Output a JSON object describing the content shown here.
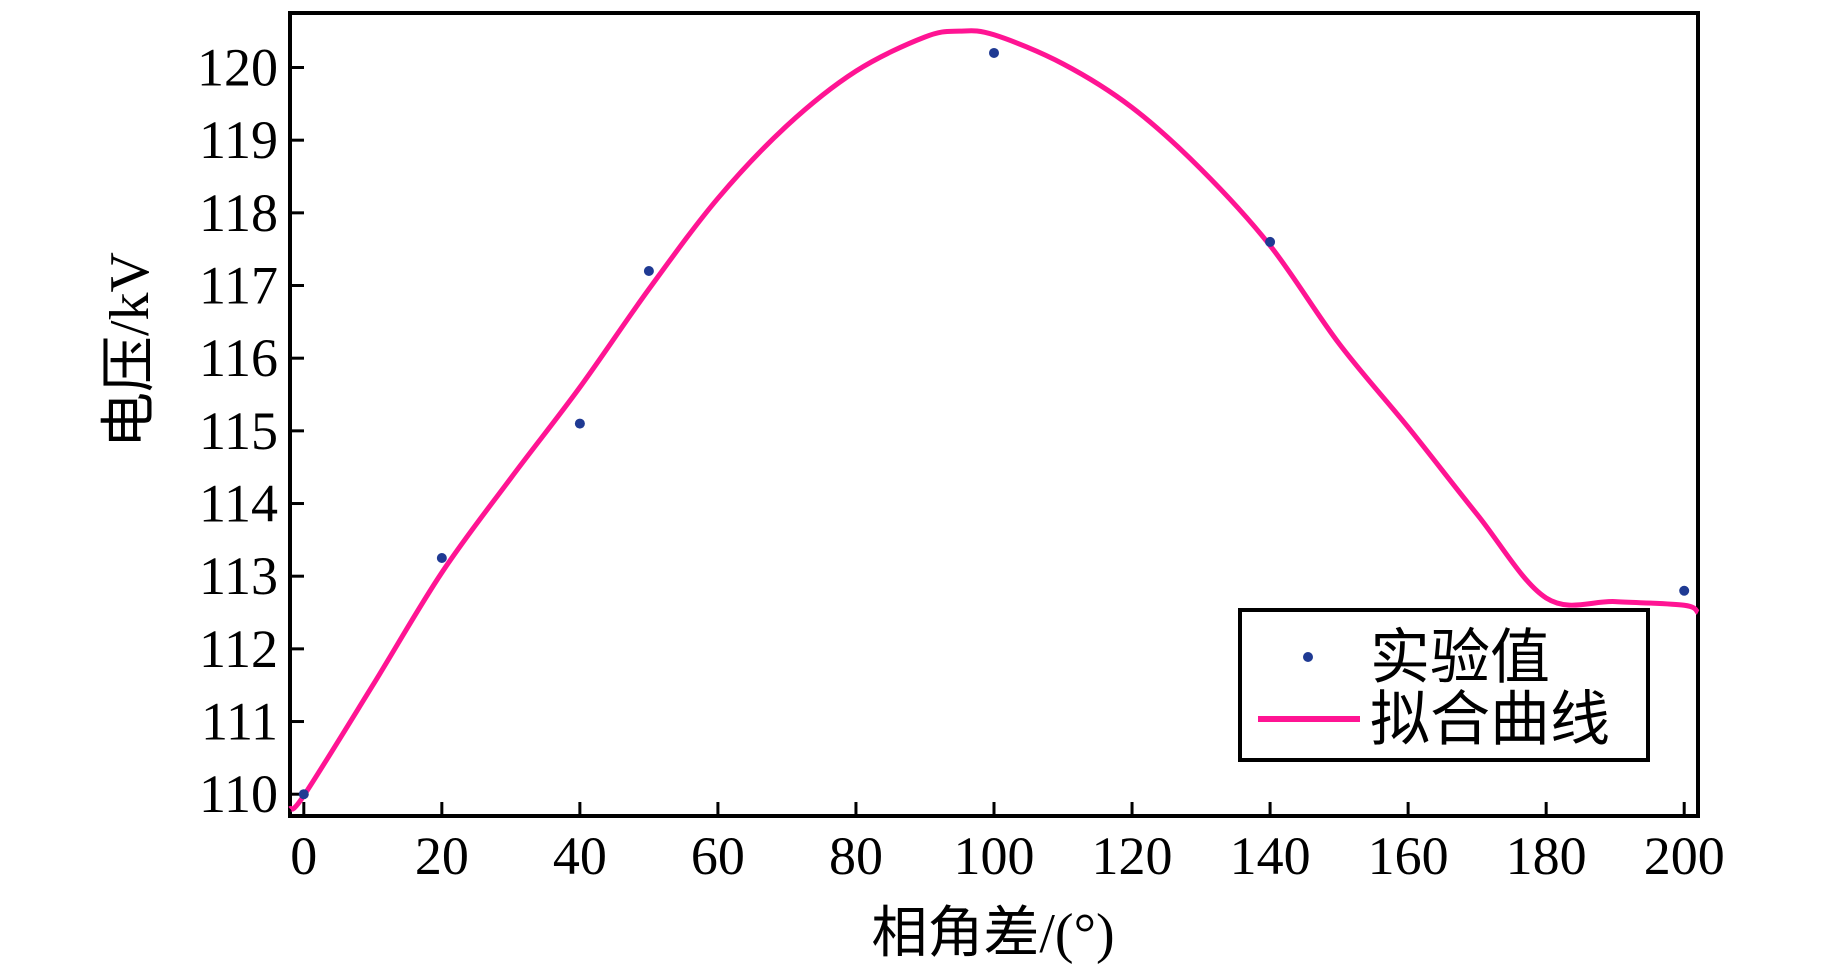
{
  "chart_data": {
    "type": "scatter",
    "title": "",
    "xlabel": "相角差/(°)",
    "ylabel": "电压/kV",
    "xlim": [
      -2,
      202
    ],
    "ylim": [
      109.7,
      120.75
    ],
    "xticks": [
      0,
      20,
      40,
      60,
      80,
      100,
      120,
      140,
      160,
      180,
      200
    ],
    "yticks": [
      110,
      111,
      112,
      113,
      114,
      115,
      116,
      117,
      118,
      119,
      120
    ],
    "grid": false,
    "legend_position": "bottom-right",
    "colors": {
      "experiment": "#1f3a93",
      "fit": "#ff1493"
    },
    "series": [
      {
        "name": "实验值",
        "kind": "scatter",
        "x": [
          0,
          20,
          40,
          50,
          100,
          140,
          200
        ],
        "y": [
          110.0,
          113.25,
          115.1,
          117.2,
          120.2,
          117.6,
          112.8
        ]
      },
      {
        "name": "拟合曲线",
        "kind": "line",
        "x": [
          -2,
          0,
          10,
          20,
          30,
          40,
          50,
          60,
          70,
          80,
          90,
          95,
          100,
          110,
          120,
          130,
          140,
          150,
          160,
          170,
          180,
          190,
          200,
          202
        ],
        "y": [
          109.8,
          109.98,
          111.5,
          113.05,
          114.35,
          115.6,
          116.95,
          118.2,
          119.2,
          119.95,
          120.42,
          120.5,
          120.45,
          120.05,
          119.45,
          118.6,
          117.55,
          116.2,
          115.05,
          113.85,
          112.7,
          112.65,
          112.6,
          112.5
        ]
      }
    ]
  }
}
